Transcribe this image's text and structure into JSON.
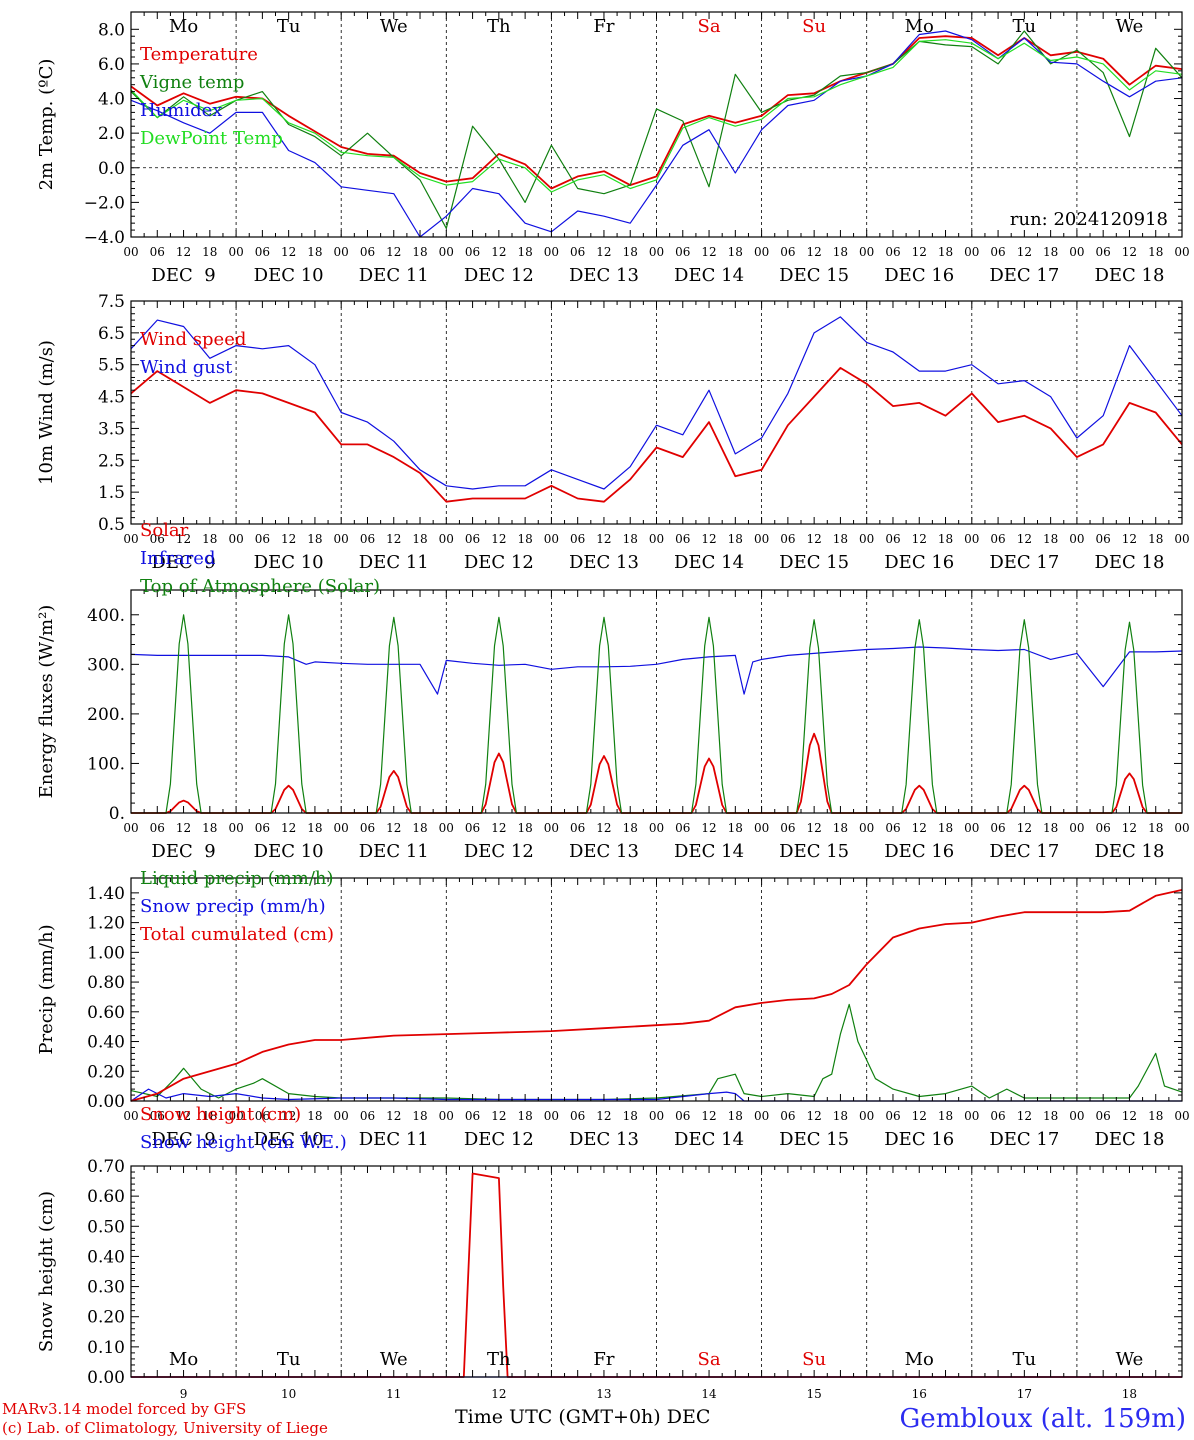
{
  "chart_data": [
    {
      "type": "line",
      "ylabel": "2m Temp. (ºC)",
      "ylim": [
        -4,
        9
      ],
      "yticks": [
        "8.0",
        "6.0",
        "4.0",
        "2.0",
        "0.0",
        "−2.0",
        "−4.0"
      ],
      "ytick_values": [
        8,
        6,
        4,
        2,
        0,
        -2,
        -4
      ],
      "reference_line": 0,
      "run_label": "run: 2024120918",
      "series": [
        {
          "name": "Temperature",
          "color": "#e00000",
          "x": [
            0,
            6,
            12,
            18,
            24,
            30,
            36,
            42,
            48,
            54,
            60,
            66,
            72,
            78,
            84,
            90,
            96,
            102,
            108,
            114,
            120,
            126,
            132,
            138,
            144,
            150,
            156,
            162,
            168,
            174,
            180,
            186,
            192,
            198,
            204,
            210,
            216,
            222,
            228,
            234,
            240
          ],
          "values": [
            4.7,
            3.6,
            4.3,
            3.7,
            4.1,
            4.0,
            3.0,
            2.1,
            1.2,
            0.8,
            0.7,
            -0.3,
            -0.8,
            -0.6,
            0.8,
            0.2,
            -1.2,
            -0.5,
            -0.2,
            -1.0,
            -0.5,
            2.5,
            3.0,
            2.6,
            3.0,
            4.2,
            4.3,
            5.0,
            5.5,
            6.0,
            7.5,
            7.6,
            7.5,
            6.5,
            7.5,
            6.5,
            6.7,
            6.3,
            4.8,
            5.9,
            5.7
          ]
        },
        {
          "name": "Vigne temp",
          "color": "#108010",
          "x": [
            0,
            6,
            12,
            18,
            24,
            30,
            36,
            42,
            48,
            54,
            60,
            66,
            72,
            78,
            84,
            90,
            96,
            102,
            108,
            114,
            120,
            126,
            132,
            138,
            144,
            150,
            156,
            162,
            168,
            174,
            180,
            186,
            192,
            198,
            204,
            210,
            216,
            222,
            228,
            234,
            240
          ],
          "values": [
            4.4,
            2.9,
            4.1,
            3.0,
            3.9,
            4.4,
            2.5,
            1.8,
            0.7,
            2.0,
            0.6,
            -0.7,
            -3.5,
            2.4,
            0.5,
            -2.0,
            1.3,
            -1.2,
            -1.5,
            -1.0,
            3.4,
            2.7,
            -1.1,
            5.4,
            3.2,
            3.9,
            4.2,
            5.3,
            5.5,
            6.0,
            7.3,
            7.1,
            7.0,
            6.0,
            7.9,
            6.0,
            6.8,
            5.5,
            1.8,
            6.9,
            5.2
          ]
        },
        {
          "name": "Humidex",
          "color": "#1010e0",
          "x": [
            0,
            6,
            12,
            18,
            24,
            30,
            36,
            42,
            48,
            54,
            60,
            66,
            72,
            78,
            84,
            90,
            96,
            102,
            108,
            114,
            120,
            126,
            132,
            138,
            144,
            150,
            156,
            162,
            168,
            174,
            180,
            186,
            192,
            198,
            204,
            210,
            216,
            222,
            228,
            234,
            240
          ],
          "values": [
            3.9,
            3.3,
            2.6,
            2.0,
            3.2,
            3.2,
            1.0,
            0.3,
            -1.1,
            -1.3,
            -1.5,
            -4.0,
            -2.8,
            -1.2,
            -1.5,
            -3.2,
            -3.7,
            -2.5,
            -2.8,
            -3.2,
            -1.0,
            1.3,
            2.2,
            -0.3,
            2.2,
            3.6,
            3.9,
            5.0,
            5.3,
            6.0,
            7.7,
            7.9,
            7.4,
            6.3,
            7.5,
            6.1,
            6.0,
            5.0,
            4.1,
            5.0,
            5.2
          ]
        },
        {
          "name": "DewPoint Temp",
          "color": "#22dd22",
          "x": [
            0,
            6,
            12,
            18,
            24,
            30,
            36,
            42,
            48,
            54,
            60,
            66,
            72,
            78,
            84,
            90,
            96,
            102,
            108,
            114,
            120,
            126,
            132,
            138,
            144,
            150,
            156,
            162,
            168,
            174,
            180,
            186,
            192,
            198,
            204,
            210,
            216,
            222,
            228,
            234,
            240
          ],
          "values": [
            4.5,
            2.9,
            3.9,
            3.3,
            3.9,
            4.0,
            2.6,
            2.0,
            0.9,
            0.7,
            0.6,
            -0.5,
            -1.0,
            -0.8,
            0.5,
            0.0,
            -1.4,
            -0.7,
            -0.4,
            -1.2,
            -0.7,
            2.3,
            2.9,
            2.4,
            2.8,
            4.0,
            4.1,
            4.8,
            5.3,
            5.8,
            7.3,
            7.4,
            7.2,
            6.3,
            7.2,
            6.2,
            6.4,
            6.0,
            4.5,
            5.6,
            5.4
          ]
        }
      ]
    },
    {
      "type": "line",
      "ylabel": "10m Wind (m/s)",
      "ylim": [
        0.5,
        7.5
      ],
      "yticks": [
        "7.5",
        "6.5",
        "5.5",
        "4.5",
        "3.5",
        "2.5",
        "1.5",
        "0.5"
      ],
      "ytick_values": [
        7.5,
        6.5,
        5.5,
        4.5,
        3.5,
        2.5,
        1.5,
        0.5
      ],
      "reference_line": 5,
      "series": [
        {
          "name": "Wind speed",
          "color": "#e00000",
          "x": [
            0,
            6,
            12,
            18,
            24,
            30,
            36,
            42,
            48,
            54,
            60,
            66,
            72,
            78,
            84,
            90,
            96,
            102,
            108,
            114,
            120,
            126,
            132,
            138,
            144,
            150,
            156,
            162,
            168,
            174,
            180,
            186,
            192,
            198,
            204,
            210,
            216,
            222,
            228,
            234,
            240
          ],
          "values": [
            4.6,
            5.3,
            4.8,
            4.3,
            4.7,
            4.6,
            4.3,
            4.0,
            3.0,
            3.0,
            2.6,
            2.1,
            1.2,
            1.3,
            1.3,
            1.3,
            1.7,
            1.3,
            1.2,
            1.9,
            2.9,
            2.6,
            3.7,
            2.0,
            2.2,
            3.6,
            4.5,
            5.4,
            4.9,
            4.2,
            4.3,
            3.9,
            4.6,
            3.7,
            3.9,
            3.5,
            2.6,
            3.0,
            4.3,
            4.0,
            3.0
          ]
        },
        {
          "name": "Wind gust",
          "color": "#1010e0",
          "x": [
            0,
            6,
            12,
            18,
            24,
            30,
            36,
            42,
            48,
            54,
            60,
            66,
            72,
            78,
            84,
            90,
            96,
            102,
            108,
            114,
            120,
            126,
            132,
            138,
            144,
            150,
            156,
            162,
            168,
            174,
            180,
            186,
            192,
            198,
            204,
            210,
            216,
            222,
            228,
            234,
            240
          ],
          "values": [
            6.0,
            6.9,
            6.7,
            5.7,
            6.1,
            6.0,
            6.1,
            5.5,
            4.0,
            3.7,
            3.1,
            2.2,
            1.7,
            1.6,
            1.7,
            1.7,
            2.2,
            1.9,
            1.6,
            2.3,
            3.6,
            3.3,
            4.7,
            2.7,
            3.2,
            4.6,
            6.5,
            7.0,
            6.2,
            5.9,
            5.3,
            5.3,
            5.5,
            4.9,
            5.0,
            4.5,
            3.2,
            3.9,
            6.1,
            5.0,
            3.9
          ]
        }
      ]
    },
    {
      "type": "line",
      "ylabel": "Energy fluxes (W/m²)",
      "ylim": [
        0,
        450
      ],
      "yticks": [
        "400.",
        "300.",
        "200.",
        "100.",
        "0."
      ],
      "ytick_values": [
        400,
        300,
        200,
        100,
        0
      ],
      "series": [
        {
          "name": "Solar",
          "color": "#e00000",
          "daily_peaks": [
            25,
            55,
            85,
            120,
            115,
            110,
            160,
            55,
            55,
            80
          ]
        },
        {
          "name": "Infrared",
          "color": "#1010e0",
          "x": [
            0,
            6,
            12,
            18,
            24,
            30,
            36,
            40,
            42,
            48,
            54,
            60,
            66,
            70,
            72,
            78,
            84,
            90,
            96,
            102,
            108,
            114,
            120,
            126,
            132,
            138,
            140,
            142,
            144,
            150,
            156,
            162,
            168,
            174,
            180,
            186,
            192,
            198,
            204,
            210,
            216,
            222,
            228,
            234,
            240
          ],
          "values": [
            320,
            318,
            318,
            318,
            318,
            318,
            315,
            300,
            305,
            302,
            300,
            300,
            300,
            240,
            308,
            302,
            298,
            300,
            290,
            295,
            295,
            296,
            300,
            310,
            315,
            318,
            240,
            305,
            310,
            318,
            322,
            326,
            330,
            332,
            335,
            333,
            330,
            328,
            330,
            310,
            322,
            255,
            325,
            325,
            327
          ]
        },
        {
          "name": "Top of Atmosphere (Solar)",
          "color": "#108010",
          "daily_peaks": [
            400,
            400,
            395,
            395,
            395,
            395,
            390,
            390,
            390,
            385
          ]
        }
      ]
    },
    {
      "type": "line",
      "ylabel": "Precip (mm/h)",
      "ylim": [
        0,
        1.5
      ],
      "yticks": [
        "1.40",
        "1.20",
        "1.00",
        "0.80",
        "0.60",
        "0.40",
        "0.20",
        "0.00"
      ],
      "ytick_values": [
        1.4,
        1.2,
        1.0,
        0.8,
        0.6,
        0.4,
        0.2,
        0.0
      ],
      "series": [
        {
          "name": "Liquid precip (mm/h)",
          "color": "#108010",
          "x": [
            0,
            6,
            10,
            12,
            16,
            20,
            24,
            28,
            30,
            36,
            42,
            48,
            60,
            72,
            84,
            96,
            108,
            120,
            132,
            134,
            138,
            140,
            144,
            150,
            156,
            158,
            160,
            162,
            164,
            166,
            170,
            174,
            180,
            186,
            192,
            196,
            200,
            204,
            210,
            216,
            222,
            228,
            230,
            234,
            236,
            240
          ],
          "values": [
            0.07,
            0.03,
            0.15,
            0.22,
            0.08,
            0.02,
            0.08,
            0.12,
            0.15,
            0.05,
            0.03,
            0.02,
            0.02,
            0.02,
            0.01,
            0.01,
            0.01,
            0.02,
            0.05,
            0.15,
            0.18,
            0.05,
            0.03,
            0.05,
            0.03,
            0.15,
            0.18,
            0.45,
            0.65,
            0.4,
            0.15,
            0.08,
            0.03,
            0.05,
            0.1,
            0.02,
            0.08,
            0.02,
            0.02,
            0.02,
            0.02,
            0.02,
            0.1,
            0.32,
            0.1,
            0.06
          ]
        },
        {
          "name": "Snow precip (mm/h)",
          "color": "#1010e0",
          "x": [
            0,
            4,
            8,
            12,
            18,
            24,
            30,
            36,
            48,
            60,
            72,
            84,
            96,
            108,
            120,
            132,
            136,
            138,
            140,
            144,
            240
          ],
          "values": [
            0.0,
            0.08,
            0.02,
            0.05,
            0.03,
            0.05,
            0.02,
            0.01,
            0.02,
            0.02,
            0.01,
            0.01,
            0.01,
            0.01,
            0.01,
            0.05,
            0.06,
            0.05,
            0.0,
            0.0,
            0.0
          ]
        },
        {
          "name": "Total cumulated (cm)",
          "color": "#e00000",
          "x": [
            0,
            6,
            12,
            18,
            24,
            30,
            36,
            42,
            48,
            60,
            72,
            84,
            96,
            108,
            120,
            126,
            132,
            138,
            144,
            150,
            156,
            160,
            164,
            168,
            174,
            180,
            186,
            192,
            198,
            204,
            210,
            216,
            222,
            228,
            234,
            240
          ],
          "values": [
            0.0,
            0.05,
            0.15,
            0.2,
            0.25,
            0.33,
            0.38,
            0.41,
            0.41,
            0.44,
            0.45,
            0.46,
            0.47,
            0.49,
            0.51,
            0.52,
            0.54,
            0.63,
            0.66,
            0.68,
            0.69,
            0.72,
            0.78,
            0.92,
            1.1,
            1.16,
            1.19,
            1.2,
            1.24,
            1.27,
            1.27,
            1.27,
            1.27,
            1.28,
            1.38,
            1.42
          ]
        }
      ]
    },
    {
      "type": "line",
      "ylabel": "Snow height (cm)",
      "ylim": [
        0,
        0.7
      ],
      "yticks": [
        "0.70",
        "0.60",
        "0.50",
        "0.40",
        "0.30",
        "0.20",
        "0.10",
        "0.00"
      ],
      "ytick_values": [
        0.7,
        0.6,
        0.5,
        0.4,
        0.3,
        0.2,
        0.1,
        0.0
      ],
      "series": [
        {
          "name": "Snow height (cm)",
          "color": "#e00000",
          "x": [
            0,
            76,
            78,
            84,
            85,
            86,
            240
          ],
          "values": [
            0,
            0,
            0.675,
            0.66,
            0.3,
            0,
            0
          ]
        },
        {
          "name": "Snow height (cm W.E.)",
          "color": "#1010e0",
          "x": [
            0,
            240
          ],
          "values": [
            0,
            0
          ]
        }
      ]
    }
  ],
  "axis": {
    "weekdays": [
      "Mo",
      "Tu",
      "We",
      "Th",
      "Fr",
      "Sa",
      "Su",
      "Mo",
      "Tu",
      "We"
    ],
    "weekend_flags": [
      false,
      false,
      false,
      false,
      false,
      true,
      true,
      false,
      false,
      false
    ],
    "date_labels": [
      "DEC  9",
      "DEC 10",
      "DEC 11",
      "DEC 12",
      "DEC 13",
      "DEC 14",
      "DEC 15",
      "DEC 16",
      "DEC 17",
      "DEC 18"
    ],
    "hour_labels": [
      "00",
      "06",
      "12",
      "18"
    ],
    "final_hour": "00",
    "day_numbers": [
      "9",
      "10",
      "11",
      "12",
      "13",
      "14",
      "15",
      "16",
      "17",
      "18"
    ],
    "xlabel": "Time UTC (GMT+0h)",
    "month": "DEC"
  },
  "footer": {
    "line1": "MARv3.14 model forced by GFS",
    "line2": "(c) Lab. of Climatology, University of Liege",
    "station": "Gembloux (alt. 159m)"
  },
  "colors": {
    "red": "#e00000",
    "green": "#108010",
    "blue": "#1010e0",
    "lightgreen": "#22dd22",
    "weekend": "#e00000"
  }
}
